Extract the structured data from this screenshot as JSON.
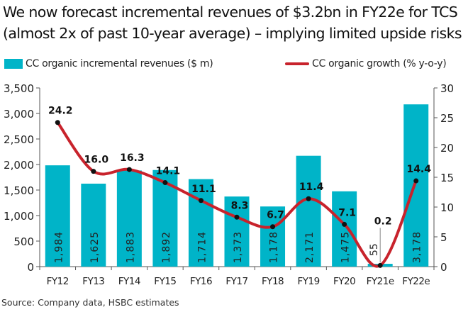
{
  "title_line1": "We now forecast incremental revenues of $3.2bn in FY22e for TCS",
  "title_line2": "(almost 2x of past 10-year average) – implying limited upside risks",
  "source": "Source: Company data, HSBC estimates",
  "colors": {
    "bar": "#00b4c8",
    "line": "#c8232c"
  },
  "chart_data": {
    "type": "bar+line",
    "categories": [
      "FY12",
      "FY13",
      "FY14",
      "FY15",
      "FY16",
      "FY17",
      "FY18",
      "FY19",
      "FY20",
      "FY21e",
      "FY22e"
    ],
    "series": [
      {
        "name": "CC organic incremental revenues ($ m)",
        "type": "bar",
        "axis": "left",
        "values": [
          1984,
          1625,
          1883,
          1892,
          1714,
          1373,
          1178,
          2171,
          1475,
          55,
          3178
        ],
        "labels": [
          "1,984",
          "1,625",
          "1,883",
          "1,892",
          "1,714",
          "1,373",
          "1,178",
          "2,171",
          "1,475",
          "55",
          "3,178"
        ]
      },
      {
        "name": "CC organic growth (% y-o-y)",
        "type": "line",
        "axis": "right",
        "values": [
          24.2,
          16.0,
          16.3,
          14.1,
          11.1,
          8.3,
          6.7,
          11.4,
          7.1,
          0.2,
          14.4
        ],
        "labels": [
          "24.2",
          "16.0",
          "16.3",
          "14.1",
          "11.1",
          "8.3",
          "6.7",
          "11.4",
          "7.1",
          "0.2",
          "14.4"
        ]
      }
    ],
    "left_axis": {
      "range": [
        0,
        3500
      ],
      "ticks": [
        "0",
        "500",
        "1,000",
        "1,500",
        "2,000",
        "2,500",
        "3,000",
        "3,500"
      ]
    },
    "right_axis": {
      "range": [
        0,
        30
      ],
      "ticks": [
        "0",
        "5",
        "10",
        "15",
        "20",
        "25",
        "30"
      ]
    },
    "legend_placement": "top",
    "grid": false
  }
}
